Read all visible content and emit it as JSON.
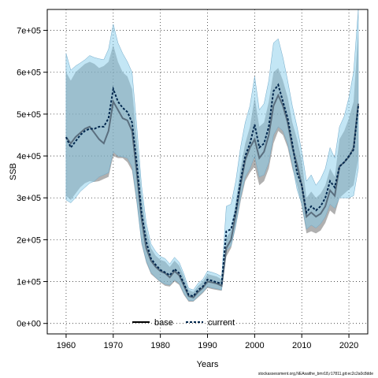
{
  "chart_data": {
    "type": "line",
    "title": "",
    "xlabel": "Years",
    "ylabel": "SSB",
    "xlim": [
      1956,
      2024
    ],
    "ylim": [
      -25000,
      750000
    ],
    "grid": true,
    "legend_position": "bottom-center",
    "x_ticks": [
      1960,
      1970,
      1980,
      1990,
      2000,
      2010,
      2020
    ],
    "x_tick_labels": [
      "1960",
      "1970",
      "1980",
      "1990",
      "2000",
      "2010",
      "2020"
    ],
    "y_ticks": [
      0,
      100000,
      200000,
      300000,
      400000,
      500000,
      600000,
      700000
    ],
    "y_tick_labels": [
      "0e+00",
      "1e+05",
      "2e+05",
      "3e+05",
      "4e+05",
      "5e+05",
      "6e+05",
      "7e+05"
    ],
    "x": [
      1960,
      1961,
      1962,
      1963,
      1964,
      1965,
      1966,
      1967,
      1968,
      1969,
      1970,
      1971,
      1972,
      1973,
      1974,
      1975,
      1976,
      1977,
      1978,
      1979,
      1980,
      1981,
      1982,
      1983,
      1984,
      1985,
      1986,
      1987,
      1988,
      1989,
      1990,
      1991,
      1992,
      1993,
      1994,
      1995,
      1996,
      1997,
      1998,
      1999,
      2000,
      2001,
      2002,
      2003,
      2004,
      2005,
      2006,
      2007,
      2008,
      2009,
      2010,
      2011,
      2012,
      2013,
      2014,
      2015,
      2016,
      2017,
      2018,
      2019,
      2020,
      2021,
      2022
    ],
    "series": [
      {
        "name": "base",
        "color": "#000000",
        "band_color": "#707070",
        "values": [
          445000,
          430000,
          445000,
          455000,
          465000,
          470000,
          455000,
          440000,
          430000,
          460000,
          530000,
          510000,
          490000,
          485000,
          460000,
          360000,
          250000,
          180000,
          150000,
          135000,
          125000,
          120000,
          110000,
          125000,
          115000,
          90000,
          65000,
          62000,
          75000,
          85000,
          100000,
          98000,
          95000,
          90000,
          180000,
          200000,
          260000,
          330000,
          390000,
          420000,
          440000,
          395000,
          410000,
          450000,
          520000,
          545000,
          520000,
          480000,
          420000,
          380000,
          330000,
          255000,
          265000,
          255000,
          262000,
          280000,
          318000,
          305000,
          375000,
          385000,
          398000,
          420000,
          525000
        ],
        "lower": [
          305000,
          295000,
          310000,
          325000,
          335000,
          340000,
          338000,
          340000,
          345000,
          350000,
          400000,
          395000,
          395000,
          385000,
          365000,
          285000,
          190000,
          145000,
          118000,
          108000,
          98000,
          90000,
          88000,
          100000,
          92000,
          68000,
          52000,
          52000,
          62000,
          72000,
          85000,
          82000,
          80000,
          78000,
          160000,
          180000,
          230000,
          290000,
          340000,
          360000,
          375000,
          330000,
          340000,
          370000,
          430000,
          460000,
          450000,
          420000,
          370000,
          330000,
          280000,
          215000,
          220000,
          215000,
          222000,
          240000,
          270000,
          260000,
          300000,
          310000,
          320000,
          330000,
          395000
        ],
        "upper": [
          600000,
          580000,
          600000,
          610000,
          620000,
          625000,
          620000,
          610000,
          615000,
          625000,
          665000,
          625000,
          600000,
          590000,
          560000,
          440000,
          310000,
          225000,
          180000,
          162000,
          152000,
          148000,
          135000,
          150000,
          138000,
          112000,
          80000,
          75000,
          90000,
          100000,
          118000,
          115000,
          112000,
          105000,
          205000,
          222000,
          290000,
          370000,
          430000,
          470000,
          540000,
          470000,
          480000,
          530000,
          600000,
          610000,
          580000,
          540000,
          480000,
          440000,
          390000,
          300000,
          315000,
          300000,
          310000,
          330000,
          370000,
          350000,
          440000,
          460000,
          490000,
          530000,
          700000
        ]
      },
      {
        "name": "current",
        "color": "#00264d",
        "band_color": "#87ceeb",
        "values": [
          445000,
          420000,
          435000,
          450000,
          460000,
          465000,
          465000,
          470000,
          470000,
          490000,
          560000,
          530000,
          515000,
          505000,
          480000,
          380000,
          265000,
          195000,
          155000,
          140000,
          128000,
          122000,
          115000,
          130000,
          120000,
          95000,
          68000,
          65000,
          80000,
          88000,
          105000,
          102000,
          98000,
          95000,
          220000,
          225000,
          270000,
          340000,
          400000,
          430000,
          475000,
          420000,
          430000,
          470000,
          555000,
          570000,
          530000,
          490000,
          430000,
          360000,
          330000,
          265000,
          280000,
          270000,
          280000,
          300000,
          340000,
          325000,
          375000,
          385000,
          400000,
          415000,
          520000
        ],
        "lower": [
          295000,
          288000,
          300000,
          315000,
          325000,
          335000,
          340000,
          350000,
          355000,
          360000,
          410000,
          400000,
          398000,
          395000,
          375000,
          295000,
          195000,
          150000,
          122000,
          110000,
          100000,
          94000,
          92000,
          104000,
          96000,
          72000,
          55000,
          54000,
          65000,
          75000,
          88000,
          85000,
          83000,
          80000,
          175000,
          185000,
          235000,
          300000,
          350000,
          370000,
          400000,
          350000,
          355000,
          385000,
          450000,
          470000,
          460000,
          430000,
          380000,
          320000,
          285000,
          225000,
          235000,
          228000,
          238000,
          255000,
          285000,
          275000,
          300000,
          300000,
          300000,
          305000,
          370000
        ],
        "upper": [
          645000,
          605000,
          615000,
          622000,
          630000,
          640000,
          635000,
          632000,
          630000,
          655000,
          715000,
          670000,
          645000,
          625000,
          600000,
          470000,
          330000,
          240000,
          190000,
          172000,
          160000,
          155000,
          142000,
          158000,
          146000,
          118000,
          84000,
          80000,
          96000,
          105000,
          125000,
          122000,
          118000,
          112000,
          280000,
          285000,
          340000,
          420000,
          480000,
          520000,
          590000,
          510000,
          525000,
          580000,
          670000,
          680000,
          635000,
          580000,
          520000,
          470000,
          410000,
          340000,
          355000,
          330000,
          345000,
          370000,
          420000,
          395000,
          470000,
          495000,
          540000,
          600000,
          750000
        ]
      }
    ]
  },
  "footer_text": "stockassessment.org,NEAsaithe_bmr18,r17811,git:ec2c2a0c8dde"
}
